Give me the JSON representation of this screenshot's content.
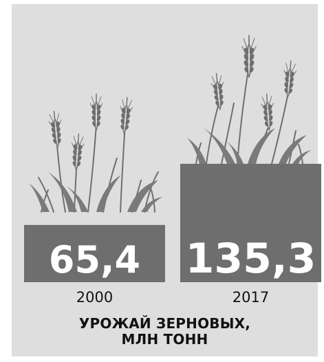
{
  "chart_data": {
    "type": "bar",
    "categories": [
      "2000",
      "2017"
    ],
    "values": [
      65.4,
      135.3
    ],
    "value_labels": [
      "65,4",
      "135,3"
    ],
    "title_lines": [
      "УРОЖАЙ ЗЕРНОВЫХ,",
      "МЛН ТОНН"
    ],
    "xlabel": "",
    "ylabel": "",
    "grid": false,
    "legend": "none",
    "bar_color": "#6e6e6e",
    "background_color": "#dedede",
    "decoration": "wheat-ears"
  }
}
